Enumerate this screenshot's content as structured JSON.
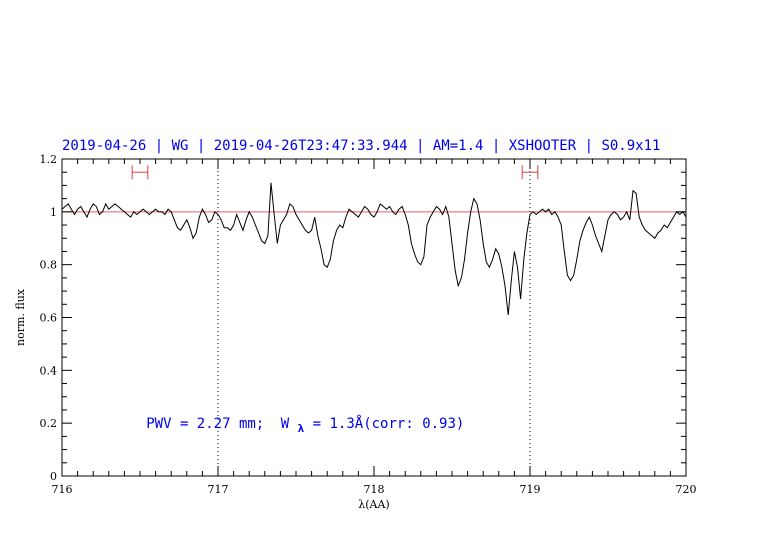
{
  "chart_data": {
    "type": "line",
    "title": "2019-04-26 | WG | 2019-04-26T23:47:33.944 | AM=1.4 | XSHOOTER | S0.9x11",
    "xlabel": "λ(AA)",
    "ylabel": "norm. flux",
    "xlim": [
      716,
      720
    ],
    "ylim": [
      0,
      1.2
    ],
    "x_ticks": [
      "716",
      "717",
      "718",
      "719",
      "720"
    ],
    "y_ticks": [
      "0",
      "0.2",
      "0.4",
      "0.6",
      "0.8",
      "1",
      "1.2"
    ],
    "grid": false,
    "reference_line": {
      "y": 1.0,
      "color": "#e06060"
    },
    "vertical_markers": [
      717.0,
      719.0
    ],
    "error_bars": [
      {
        "x_min": 716.45,
        "x_max": 716.55,
        "y": 1.15
      },
      {
        "x_min": 718.95,
        "x_max": 719.05,
        "y": 1.15
      }
    ],
    "annotation": {
      "pwv": "PWV = 2.27 mm;",
      "w": "W",
      "w_sub": "λ",
      "rest": " = 1.3Å(corr: 0.93)"
    },
    "series": [
      {
        "color": "#000000",
        "x": [
          716.0,
          716.02,
          716.04,
          716.06,
          716.08,
          716.1,
          716.12,
          716.14,
          716.16,
          716.18,
          716.2,
          716.22,
          716.24,
          716.26,
          716.28,
          716.3,
          716.32,
          716.34,
          716.36,
          716.38,
          716.4,
          716.42,
          716.44,
          716.46,
          716.48,
          716.5,
          716.52,
          716.54,
          716.56,
          716.58,
          716.6,
          716.62,
          716.64,
          716.66,
          716.68,
          716.7,
          716.72,
          716.74,
          716.76,
          716.78,
          716.8,
          716.82,
          716.84,
          716.86,
          716.88,
          716.9,
          716.92,
          716.94,
          716.96,
          716.98,
          717.0,
          717.02,
          717.04,
          717.06,
          717.08,
          717.1,
          717.12,
          717.14,
          717.16,
          717.18,
          717.2,
          717.22,
          717.24,
          717.26,
          717.28,
          717.3,
          717.32,
          717.34,
          717.36,
          717.38,
          717.4,
          717.42,
          717.44,
          717.46,
          717.48,
          717.5,
          717.52,
          717.54,
          717.56,
          717.58,
          717.6,
          717.62,
          717.64,
          717.66,
          717.68,
          717.7,
          717.72,
          717.74,
          717.76,
          717.78,
          717.8,
          717.82,
          717.84,
          717.86,
          717.88,
          717.9,
          717.92,
          717.94,
          717.96,
          717.98,
          718.0,
          718.02,
          718.04,
          718.06,
          718.08,
          718.1,
          718.12,
          718.14,
          718.16,
          718.18,
          718.2,
          718.22,
          718.24,
          718.26,
          718.28,
          718.3,
          718.32,
          718.34,
          718.36,
          718.38,
          718.4,
          718.42,
          718.44,
          718.46,
          718.48,
          718.5,
          718.52,
          718.54,
          718.56,
          718.58,
          718.6,
          718.62,
          718.64,
          718.66,
          718.68,
          718.7,
          718.72,
          718.74,
          718.76,
          718.78,
          718.8,
          718.82,
          718.84,
          718.86,
          718.88,
          718.9,
          718.92,
          718.94,
          718.96,
          718.98,
          719.0,
          719.02,
          719.04,
          719.06,
          719.08,
          719.1,
          719.12,
          719.14,
          719.16,
          719.18,
          719.2,
          719.22,
          719.24,
          719.26,
          719.28,
          719.3,
          719.32,
          719.34,
          719.36,
          719.38,
          719.4,
          719.42,
          719.44,
          719.46,
          719.48,
          719.5,
          719.52,
          719.54,
          719.56,
          719.58,
          719.6,
          719.62,
          719.64,
          719.66,
          719.68,
          719.7,
          719.72,
          719.74,
          719.76,
          719.78,
          719.8,
          719.82,
          719.84,
          719.86,
          719.88,
          719.9,
          719.92,
          719.94,
          719.96,
          719.98,
          720.0
        ],
        "y": [
          1.01,
          1.02,
          1.03,
          1.01,
          0.99,
          1.01,
          1.02,
          1.0,
          0.98,
          1.01,
          1.03,
          1.02,
          0.99,
          1.0,
          1.03,
          1.01,
          1.02,
          1.03,
          1.02,
          1.01,
          1.0,
          0.99,
          0.98,
          1.0,
          0.99,
          1.0,
          1.01,
          1.0,
          0.99,
          1.0,
          1.01,
          1.0,
          1.0,
          0.99,
          1.01,
          1.0,
          0.97,
          0.94,
          0.93,
          0.95,
          0.97,
          0.94,
          0.9,
          0.92,
          0.98,
          1.01,
          0.99,
          0.96,
          0.97,
          1.0,
          0.99,
          0.97,
          0.94,
          0.94,
          0.93,
          0.95,
          0.99,
          0.96,
          0.93,
          0.97,
          1.0,
          0.98,
          0.95,
          0.92,
          0.89,
          0.88,
          0.91,
          1.11,
          0.99,
          0.88,
          0.95,
          0.97,
          0.99,
          1.03,
          1.02,
          0.99,
          0.97,
          0.95,
          0.93,
          0.92,
          0.93,
          0.98,
          0.91,
          0.86,
          0.8,
          0.79,
          0.82,
          0.89,
          0.93,
          0.95,
          0.94,
          0.98,
          1.01,
          1.0,
          0.99,
          0.98,
          1.0,
          1.02,
          1.01,
          0.99,
          0.98,
          1.0,
          1.03,
          1.02,
          1.01,
          1.02,
          1.0,
          0.99,
          1.01,
          1.02,
          0.99,
          0.95,
          0.88,
          0.84,
          0.81,
          0.8,
          0.83,
          0.95,
          0.98,
          1.0,
          1.02,
          1.01,
          0.99,
          1.02,
          0.98,
          0.88,
          0.78,
          0.72,
          0.75,
          0.82,
          0.92,
          1.0,
          1.05,
          1.03,
          0.97,
          0.88,
          0.81,
          0.79,
          0.82,
          0.86,
          0.84,
          0.79,
          0.72,
          0.61,
          0.74,
          0.85,
          0.79,
          0.67,
          0.82,
          0.92,
          0.99,
          1.0,
          0.99,
          1.0,
          1.01,
          1.0,
          1.01,
          0.99,
          1.0,
          0.98,
          0.95,
          0.85,
          0.76,
          0.74,
          0.76,
          0.82,
          0.89,
          0.93,
          0.96,
          0.98,
          0.95,
          0.91,
          0.88,
          0.85,
          0.91,
          0.97,
          0.99,
          1.0,
          0.99,
          0.97,
          0.98,
          1.0,
          0.97,
          1.08,
          1.07,
          0.98,
          0.95,
          0.93,
          0.92,
          0.91,
          0.9,
          0.92,
          0.93,
          0.95,
          0.94,
          0.96,
          0.98,
          1.0,
          0.99,
          1.0,
          0.98
        ]
      }
    ]
  }
}
